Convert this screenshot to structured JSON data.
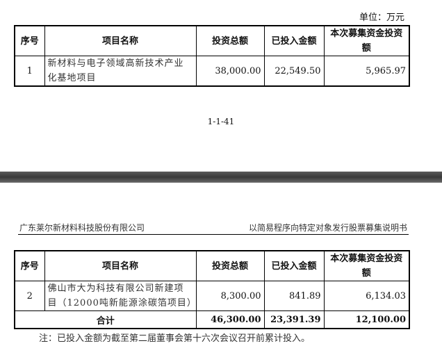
{
  "unit_label": "单位：万元",
  "columns": [
    "序号",
    "项目名称",
    "投资总额",
    "已投入金额",
    "本次募集资金投资额"
  ],
  "table1": {
    "rows": [
      {
        "no": "1",
        "name": "新材料与电子领域高新技术产业化基地项目",
        "total": "38,000.00",
        "invested": "22,549.50",
        "raise": "5,965.97"
      }
    ]
  },
  "page_number": "1-1-41",
  "header": {
    "company": "广东莱尔新材料科技股份有限公司",
    "doc_title": "以简易程序向特定对象发行股票募集说明书"
  },
  "table2": {
    "rows": [
      {
        "no": "2",
        "name": "佛山市大为科技有限公司新建项目（12000吨新能源涂碳箔项目）",
        "total": "8,300.00",
        "invested": "841.89",
        "raise": "6,134.03"
      }
    ],
    "total": {
      "label": "合计",
      "total": "46,300.00",
      "invested": "23,391.39",
      "raise": "12,100.00"
    }
  },
  "note": "注：已投入金额为截至第二届董事会第十六次会议召开前累计投入。"
}
